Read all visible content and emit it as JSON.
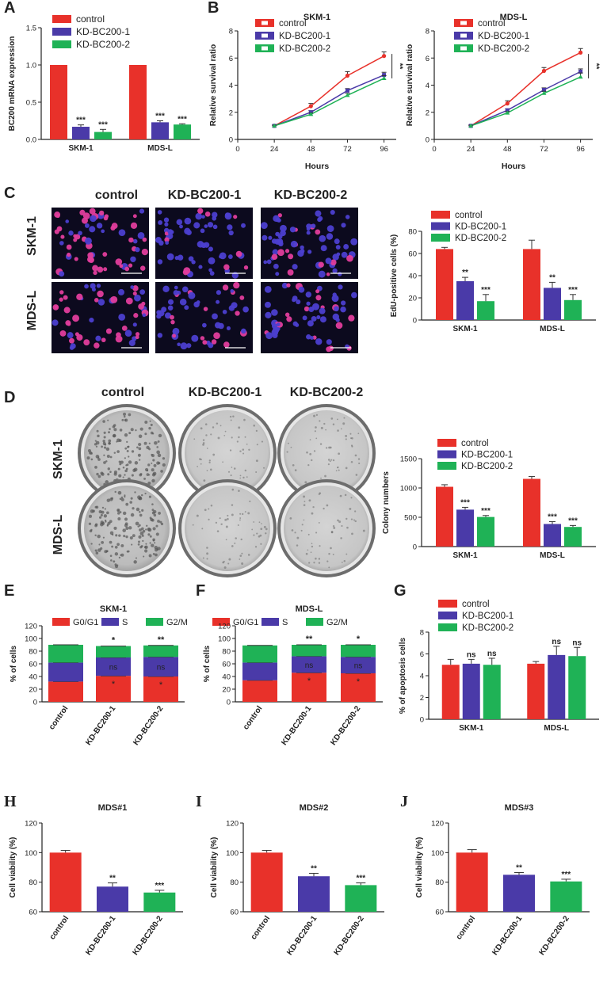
{
  "colors": {
    "control": "#e8312a",
    "kd1": "#4a3aa8",
    "kd2": "#1fb256",
    "g0g1": "#e8312a",
    "s": "#4a3aa8",
    "g2m": "#1fb256",
    "axis": "#222222"
  },
  "panels": {
    "A": {
      "letter": "A"
    },
    "B": {
      "letter": "B"
    },
    "C": {
      "letter": "C"
    },
    "D": {
      "letter": "D"
    },
    "E": {
      "letter": "E"
    },
    "F": {
      "letter": "F"
    },
    "G": {
      "letter": "G"
    },
    "H": {
      "letter": "H"
    },
    "I": {
      "letter": "I"
    },
    "J": {
      "letter": "J"
    }
  },
  "legend": {
    "control": "control",
    "kd1": "KD-BC200-1",
    "kd2": "KD-BC200-2",
    "g0g1": "G0/G1",
    "s": "S",
    "g2m": "G2/M"
  },
  "images": {
    "col_headers": [
      "control",
      "KD-BC200-1",
      "KD-BC200-2"
    ],
    "row_headers": [
      "SKM-1",
      "MDS-L"
    ],
    "scale_bar": "100 μm"
  },
  "chart_data": [
    {
      "id": "A",
      "type": "bar",
      "title": "",
      "xlabel": "",
      "ylabel": "BC200 mRNA expression",
      "ylim": [
        0,
        1.5
      ],
      "yticks": [
        "0.0",
        "0.5",
        "1.0",
        "1.5"
      ],
      "categories": [
        "SKM-1",
        "MDS-L"
      ],
      "series": [
        {
          "name": "control",
          "values": [
            1.0,
            1.0
          ],
          "err": [
            0,
            0
          ],
          "sig": [
            "",
            ""
          ]
        },
        {
          "name": "KD-BC200-1",
          "values": [
            0.17,
            0.23
          ],
          "err": [
            0.025,
            0.02
          ],
          "sig": [
            "***",
            "***"
          ]
        },
        {
          "name": "KD-BC200-2",
          "values": [
            0.1,
            0.2
          ],
          "err": [
            0.035,
            0.01
          ],
          "sig": [
            "***",
            "***"
          ]
        }
      ]
    },
    {
      "id": "B1",
      "type": "line",
      "title": "SKM-1",
      "xlabel": "Hours",
      "ylabel": "Relative survival ratio",
      "x": [
        24,
        48,
        72,
        96
      ],
      "xticks": [
        "0",
        "24",
        "48",
        "72",
        "96"
      ],
      "ylim": [
        0,
        8
      ],
      "yticks": [
        "0",
        "2",
        "4",
        "6",
        "8"
      ],
      "sig": "**",
      "series": [
        {
          "name": "control",
          "values": [
            1.0,
            2.45,
            4.7,
            6.15
          ],
          "err": [
            0.05,
            0.2,
            0.3,
            0.3
          ]
        },
        {
          "name": "KD-BC200-1",
          "values": [
            1.0,
            2.0,
            3.6,
            4.75
          ],
          "err": [
            0.05,
            0.12,
            0.15,
            0.2
          ]
        },
        {
          "name": "KD-BC200-2",
          "values": [
            1.0,
            1.85,
            3.25,
            4.5
          ],
          "err": [
            0.05,
            0.1,
            0.15,
            0.2
          ]
        }
      ]
    },
    {
      "id": "B2",
      "type": "line",
      "title": "MDS-L",
      "xlabel": "Hours",
      "ylabel": "Relative survival ratio",
      "x": [
        24,
        48,
        72,
        96
      ],
      "xticks": [
        "0",
        "24",
        "48",
        "72",
        "96"
      ],
      "ylim": [
        0,
        8
      ],
      "yticks": [
        "0",
        "2",
        "4",
        "6",
        "8"
      ],
      "sig": "**",
      "series": [
        {
          "name": "control",
          "values": [
            1.0,
            2.65,
            5.05,
            6.4
          ],
          "err": [
            0.05,
            0.2,
            0.25,
            0.3
          ]
        },
        {
          "name": "KD-BC200-1",
          "values": [
            1.0,
            2.15,
            3.65,
            5.0
          ],
          "err": [
            0.05,
            0.1,
            0.15,
            0.2
          ]
        },
        {
          "name": "KD-BC200-2",
          "values": [
            1.0,
            1.95,
            3.4,
            4.6
          ],
          "err": [
            0.05,
            0.1,
            0.15,
            0.3
          ]
        }
      ]
    },
    {
      "id": "C",
      "type": "bar",
      "title": "",
      "xlabel": "",
      "ylabel": "EdU-positive cells (%)",
      "ylim": [
        0,
        80
      ],
      "yticks": [
        "0",
        "20",
        "40",
        "60",
        "80"
      ],
      "categories": [
        "SKM-1",
        "MDS-L"
      ],
      "series": [
        {
          "name": "control",
          "values": [
            64,
            64
          ],
          "err": [
            1.5,
            8
          ],
          "sig": [
            "",
            ""
          ]
        },
        {
          "name": "KD-BC200-1",
          "values": [
            35,
            29
          ],
          "err": [
            3.5,
            5
          ],
          "sig": [
            "**",
            "**"
          ]
        },
        {
          "name": "KD-BC200-2",
          "values": [
            17,
            18
          ],
          "err": [
            6,
            5
          ],
          "sig": [
            "***",
            "***"
          ]
        }
      ]
    },
    {
      "id": "D",
      "type": "bar",
      "title": "",
      "xlabel": "",
      "ylabel": "Colony numbers",
      "ylim": [
        0,
        1500
      ],
      "yticks": [
        "0",
        "500",
        "1000",
        "1500"
      ],
      "categories": [
        "SKM-1",
        "MDS-L"
      ],
      "series": [
        {
          "name": "control",
          "values": [
            1020,
            1155
          ],
          "err": [
            35,
            40
          ],
          "sig": [
            "",
            ""
          ]
        },
        {
          "name": "KD-BC200-1",
          "values": [
            630,
            385
          ],
          "err": [
            40,
            40
          ],
          "sig": [
            "***",
            "***"
          ]
        },
        {
          "name": "KD-BC200-2",
          "values": [
            505,
            335
          ],
          "err": [
            25,
            25
          ],
          "sig": [
            "***",
            "***"
          ]
        }
      ]
    },
    {
      "id": "E",
      "type": "stacked-bar",
      "title": "SKM-1",
      "xlabel": "",
      "ylabel": "% of cells",
      "ylim": [
        0,
        120
      ],
      "yticks": [
        "0",
        "20",
        "40",
        "60",
        "80",
        "100",
        "120"
      ],
      "categories": [
        "control",
        "KD-BC200-1",
        "KD-BC200-2"
      ],
      "series": [
        {
          "name": "G0/G1",
          "values": [
            32,
            41,
            40
          ],
          "sig": [
            "",
            "*",
            "*"
          ]
        },
        {
          "name": "S",
          "values": [
            30,
            29,
            31
          ],
          "sig": [
            "",
            "ns",
            "ns"
          ]
        },
        {
          "name": "G2/M",
          "values": [
            28,
            18,
            18
          ],
          "sig": [
            "",
            "*",
            "**"
          ]
        }
      ]
    },
    {
      "id": "F",
      "type": "stacked-bar",
      "title": "MDS-L",
      "xlabel": "",
      "ylabel": "% of cells",
      "ylim": [
        0,
        120
      ],
      "yticks": [
        "0",
        "20",
        "40",
        "60",
        "80",
        "100",
        "120"
      ],
      "categories": [
        "control",
        "KD-BC200-1",
        "KD-BC200-2"
      ],
      "series": [
        {
          "name": "G0/G1",
          "values": [
            34,
            46,
            45
          ],
          "sig": [
            "",
            "*",
            "*"
          ]
        },
        {
          "name": "S",
          "values": [
            28,
            26,
            26
          ],
          "sig": [
            "",
            "ns",
            "ns"
          ]
        },
        {
          "name": "G2/M",
          "values": [
            27,
            18,
            19
          ],
          "sig": [
            "",
            "**",
            "*"
          ]
        }
      ]
    },
    {
      "id": "G",
      "type": "bar",
      "title": "",
      "xlabel": "",
      "ylabel": "% of apoptosis cells",
      "ylim": [
        0,
        8
      ],
      "yticks": [
        "0",
        "2",
        "4",
        "6",
        "8"
      ],
      "categories": [
        "SKM-1",
        "MDS-L"
      ],
      "series": [
        {
          "name": "control",
          "values": [
            5.0,
            5.1
          ],
          "err": [
            0.5,
            0.2
          ],
          "sig": [
            "",
            ""
          ]
        },
        {
          "name": "KD-BC200-1",
          "values": [
            5.1,
            5.9
          ],
          "err": [
            0.4,
            0.8
          ],
          "sig": [
            "ns",
            "ns"
          ]
        },
        {
          "name": "KD-BC200-2",
          "values": [
            5.0,
            5.8
          ],
          "err": [
            0.6,
            0.8
          ],
          "sig": [
            "ns",
            "ns"
          ]
        }
      ]
    },
    {
      "id": "H",
      "type": "bar",
      "title": "MDS#1",
      "xlabel": "",
      "ylabel": "Cell viability (%)",
      "ylim": [
        60,
        120
      ],
      "yticks": [
        "60",
        "80",
        "100",
        "120"
      ],
      "categories": [
        "control",
        "KD-BC200-1",
        "KD-BC200-2"
      ],
      "values": [
        100,
        77,
        73
      ],
      "err": [
        1.5,
        2.5,
        1.5
      ],
      "sig": [
        "",
        "**",
        "***"
      ]
    },
    {
      "id": "I",
      "type": "bar",
      "title": "MDS#2",
      "xlabel": "",
      "ylabel": "Cell viability (%)",
      "ylim": [
        60,
        120
      ],
      "yticks": [
        "60",
        "80",
        "100",
        "120"
      ],
      "categories": [
        "control",
        "KD-BC200-1",
        "KD-BC200-2"
      ],
      "values": [
        100,
        84,
        78
      ],
      "err": [
        1.5,
        2,
        1.5
      ],
      "sig": [
        "",
        "**",
        "***"
      ]
    },
    {
      "id": "J",
      "type": "bar",
      "title": "MDS#3",
      "xlabel": "",
      "ylabel": "Cell viability (%)",
      "ylim": [
        60,
        120
      ],
      "yticks": [
        "60",
        "80",
        "100",
        "120"
      ],
      "categories": [
        "control",
        "KD-BC200-1",
        "KD-BC200-2"
      ],
      "values": [
        100,
        85,
        80.5
      ],
      "err": [
        2,
        1.5,
        1.5
      ],
      "sig": [
        "",
        "**",
        "***"
      ]
    }
  ]
}
